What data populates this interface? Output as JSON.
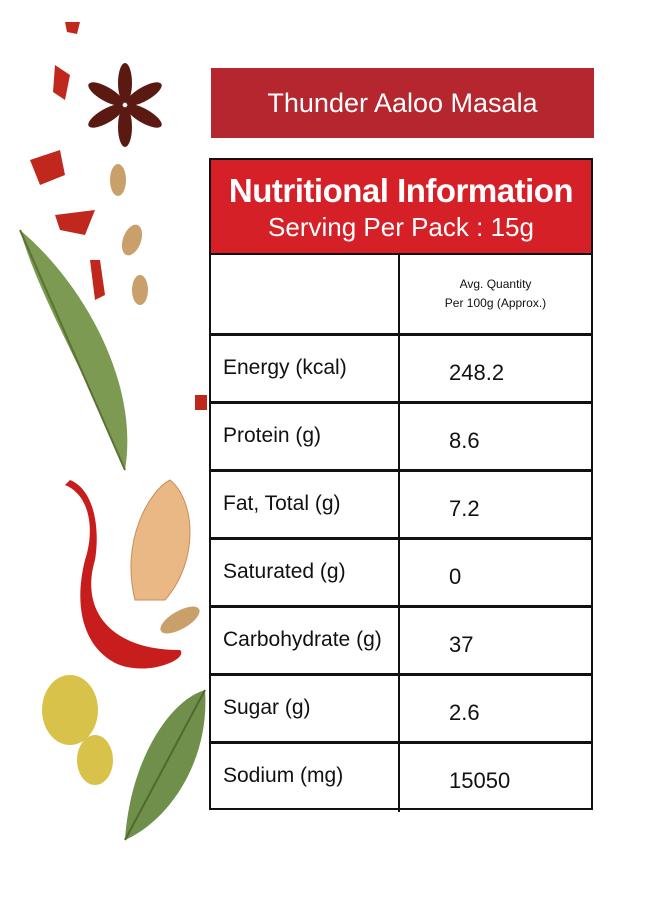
{
  "title": "Thunder Aaloo Masala",
  "table": {
    "heading": "Nutritional Information",
    "subheading": "Serving Per Pack : 15g",
    "column_header": [
      "Avg. Quantity",
      "Per 100g (Approx.)"
    ],
    "rows": [
      [
        "Energy (kcal)",
        "248.2"
      ],
      [
        "Protein (g)",
        "8.6"
      ],
      [
        "Fat, Total (g)",
        "7.2"
      ],
      [
        "Saturated (g)",
        "0"
      ],
      [
        "Carbohydrate (g)",
        "37"
      ],
      [
        "Sugar (g)",
        "2.6"
      ],
      [
        "Sodium (mg)",
        "15050"
      ]
    ]
  }
}
